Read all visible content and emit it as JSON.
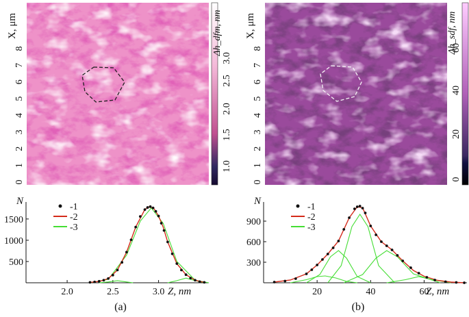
{
  "panels": [
    {
      "id": "a",
      "caption": "(a)",
      "map": {
        "y_axis_label": "X, μm",
        "y_ticks": [
          "0",
          "1",
          "2",
          "3",
          "4",
          "5",
          "6",
          "7",
          "8"
        ],
        "colorbar_label": "Δh_dfm, nm",
        "colorbar_ticks": [
          "1.0",
          "1.5",
          "2.0",
          "2.5",
          "3.0"
        ],
        "colors": {
          "base": "#ee92c8",
          "dark": "#c0308a",
          "light": "#fff3f7",
          "bar_top": "#ffffff",
          "bar_mid": "#e070b0",
          "bar_bottom": "#150a30"
        }
      },
      "histogram": {
        "y_axis_label": "N",
        "y_ticks": [
          "500",
          "1000",
          "1500"
        ],
        "x_ticks": [
          "2.0",
          "2.5",
          "3.0"
        ],
        "x_axis_label": "Z, nm",
        "legend": [
          "-1",
          "-2",
          "-3"
        ]
      }
    },
    {
      "id": "b",
      "caption": "(b)",
      "map": {
        "y_axis_label": "X, μm",
        "y_ticks": [
          "0",
          "1",
          "2",
          "3",
          "4",
          "5",
          "6",
          "7",
          "8"
        ],
        "colorbar_label": "Δh_sdf, nm",
        "colorbar_ticks": [
          "0",
          "20",
          "40",
          "60"
        ],
        "colors": {
          "base": "#9a4a9c",
          "dark": "#3a163a",
          "light": "#e8b4ea",
          "bar_top": "#ffccff",
          "bar_mid": "#a050a8",
          "bar_bottom": "#000000"
        }
      },
      "histogram": {
        "y_axis_label": "N",
        "y_ticks": [
          "300",
          "600",
          "900"
        ],
        "x_ticks": [
          "20",
          "40",
          "60"
        ],
        "x_axis_label": "Z, nm",
        "legend": [
          "-1",
          "-2",
          "-3"
        ]
      }
    }
  ],
  "legend_colors": {
    "points": "#111111",
    "fit": "#d42a1a",
    "components": "#44dd33"
  },
  "chart_data": [
    {
      "type": "scatter",
      "title": "",
      "xlabel": "Z, nm",
      "ylabel": "N",
      "xlim": [
        1.55,
        3.55
      ],
      "ylim": [
        0,
        1900
      ],
      "series": [
        {
          "name": "-1",
          "kind": "points",
          "x": [
            2.25,
            2.3,
            2.35,
            2.4,
            2.45,
            2.5,
            2.55,
            2.6,
            2.65,
            2.7,
            2.75,
            2.8,
            2.85,
            2.88,
            2.91,
            2.94,
            2.97,
            3.0,
            3.03,
            3.06,
            3.1,
            3.15,
            3.2,
            3.25,
            3.3,
            3.35,
            3.4,
            3.45,
            3.5
          ],
          "y": [
            10,
            20,
            35,
            60,
            100,
            180,
            300,
            480,
            720,
            1010,
            1310,
            1560,
            1720,
            1770,
            1790,
            1760,
            1680,
            1570,
            1400,
            1230,
            960,
            680,
            450,
            300,
            190,
            110,
            60,
            25,
            10
          ]
        },
        {
          "name": "-2",
          "kind": "fit",
          "x": [
            2.25,
            2.35,
            2.45,
            2.55,
            2.65,
            2.75,
            2.85,
            2.9,
            2.95,
            3.0,
            3.05,
            3.1,
            3.2,
            3.3,
            3.4,
            3.5
          ],
          "y": [
            10,
            33,
            98,
            300,
            720,
            1310,
            1725,
            1790,
            1740,
            1570,
            1310,
            960,
            450,
            190,
            60,
            10
          ]
        },
        {
          "name": "-3",
          "kind": "components",
          "components": [
            {
              "x": [
                2.35,
                2.45,
                2.55,
                2.65,
                2.72
              ],
              "y": [
                0,
                20,
                50,
                20,
                0
              ]
            },
            {
              "x": [
                2.25,
                2.45,
                2.65,
                2.8,
                2.92,
                3.05,
                3.2,
                3.4,
                3.55
              ],
              "y": [
                0,
                80,
                650,
                1450,
                1760,
                1400,
                500,
                60,
                0
              ]
            },
            {
              "x": [
                3.1,
                3.2,
                3.3,
                3.4,
                3.5
              ],
              "y": [
                0,
                50,
                110,
                50,
                0
              ]
            }
          ]
        }
      ]
    },
    {
      "type": "scatter",
      "title": "",
      "xlabel": "Z, nm",
      "ylabel": "N",
      "xlim": [
        0,
        76
      ],
      "ylim": [
        0,
        1180
      ],
      "series": [
        {
          "name": "-1",
          "kind": "points",
          "x": [
            4,
            8,
            12,
            16,
            18,
            20,
            22,
            24,
            26,
            28,
            30,
            32,
            34,
            35,
            36,
            37,
            38,
            40,
            42,
            44,
            46,
            48,
            50,
            52,
            55,
            58,
            61,
            64,
            68,
            72,
            75
          ],
          "y": [
            10,
            25,
            60,
            130,
            190,
            260,
            340,
            420,
            510,
            610,
            780,
            950,
            1080,
            1110,
            1120,
            1090,
            1020,
            830,
            700,
            600,
            540,
            480,
            400,
            320,
            220,
            140,
            80,
            40,
            15,
            5,
            0
          ]
        },
        {
          "name": "-2",
          "kind": "fit",
          "x": [
            4,
            10,
            16,
            20,
            24,
            28,
            32,
            35,
            37,
            40,
            44,
            48,
            52,
            56,
            60,
            65,
            70,
            75
          ],
          "y": [
            10,
            40,
            130,
            260,
            420,
            610,
            950,
            1110,
            1095,
            830,
            600,
            480,
            320,
            180,
            95,
            35,
            10,
            0
          ]
        },
        {
          "name": "-3",
          "kind": "components",
          "components": [
            {
              "x": [
                10,
                16,
                20,
                23,
                27,
                31,
                35
              ],
              "y": [
                0,
                45,
                90,
                100,
                70,
                20,
                0
              ]
            },
            {
              "x": [
                16,
                21,
                25,
                28,
                31,
                35,
                40
              ],
              "y": [
                0,
                120,
                380,
                470,
                360,
                90,
                0
              ]
            },
            {
              "x": [
                24,
                29,
                33,
                36,
                39,
                43,
                49
              ],
              "y": [
                0,
                250,
                820,
                1000,
                820,
                250,
                0
              ]
            },
            {
              "x": [
                30,
                37,
                42,
                46,
                50,
                56,
                66
              ],
              "y": [
                0,
                120,
                360,
                470,
                380,
                130,
                0
              ]
            },
            {
              "x": [
                46,
                53,
                58,
                63,
                70
              ],
              "y": [
                0,
                45,
                90,
                45,
                0
              ]
            }
          ]
        }
      ]
    }
  ]
}
